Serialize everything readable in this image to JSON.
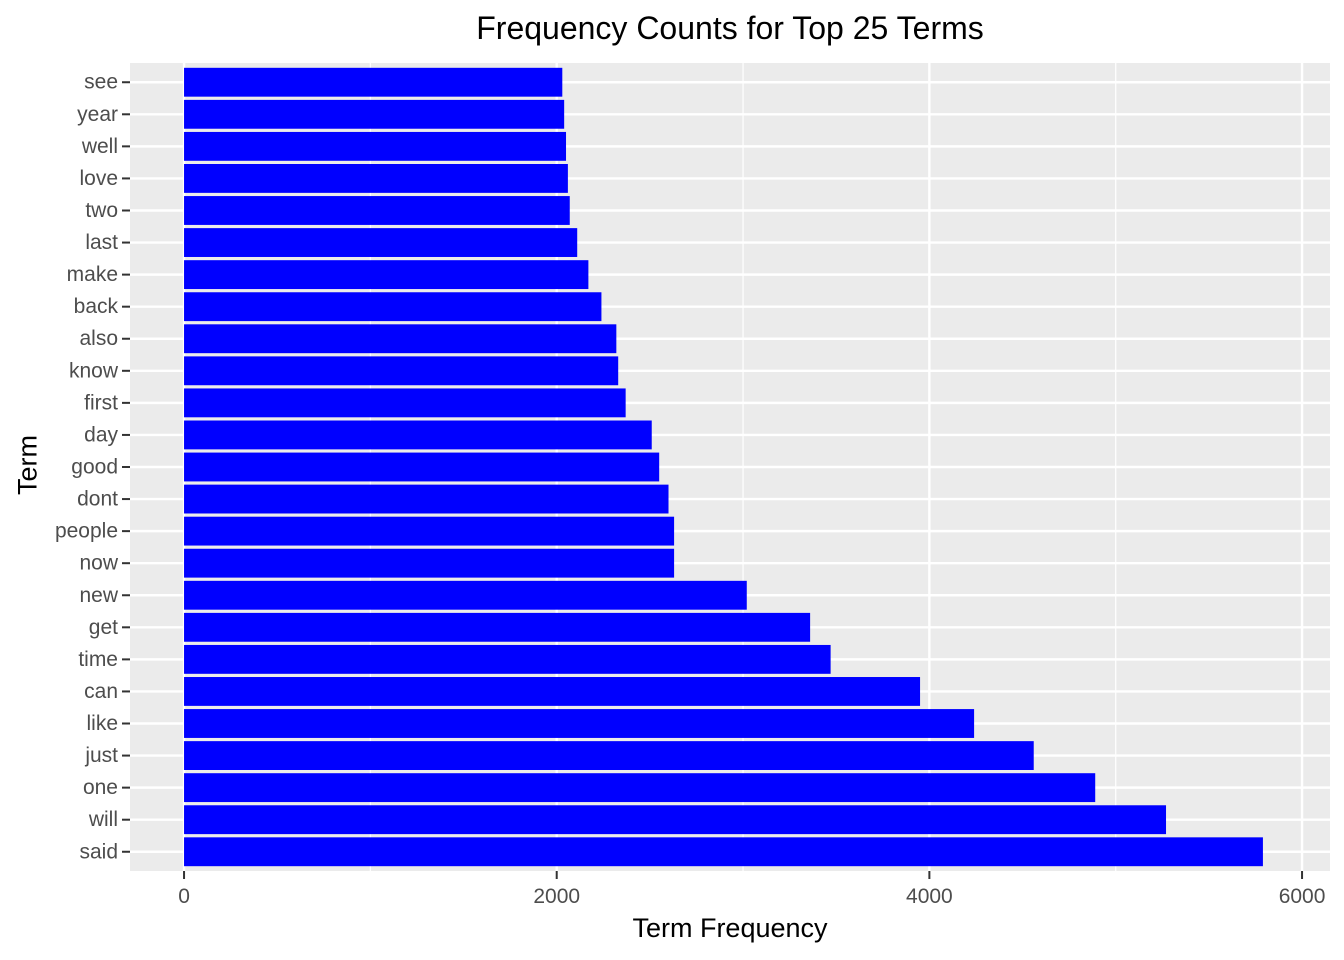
{
  "chart_data": {
    "type": "bar",
    "orientation": "horizontal",
    "title": "Frequency Counts for Top 25 Terms",
    "xlabel": "Term Frequency",
    "ylabel": "Term",
    "xlim": [
      -290,
      6150
    ],
    "x_ticks": [
      0,
      2000,
      4000,
      6000
    ],
    "grid": true,
    "bar_color": "#0000FF",
    "panel_color": "#EBEBEB",
    "grid_color": "#FFFFFF",
    "categories": [
      "said",
      "will",
      "one",
      "just",
      "like",
      "can",
      "time",
      "get",
      "new",
      "now",
      "people",
      "dont",
      "good",
      "day",
      "first",
      "know",
      "also",
      "back",
      "make",
      "last",
      "two",
      "love",
      "well",
      "year",
      "see"
    ],
    "values": [
      5790,
      5270,
      4890,
      4560,
      4240,
      3950,
      3470,
      3360,
      3020,
      2630,
      2630,
      2600,
      2550,
      2510,
      2370,
      2330,
      2320,
      2240,
      2170,
      2110,
      2070,
      2060,
      2050,
      2040,
      2030
    ]
  }
}
